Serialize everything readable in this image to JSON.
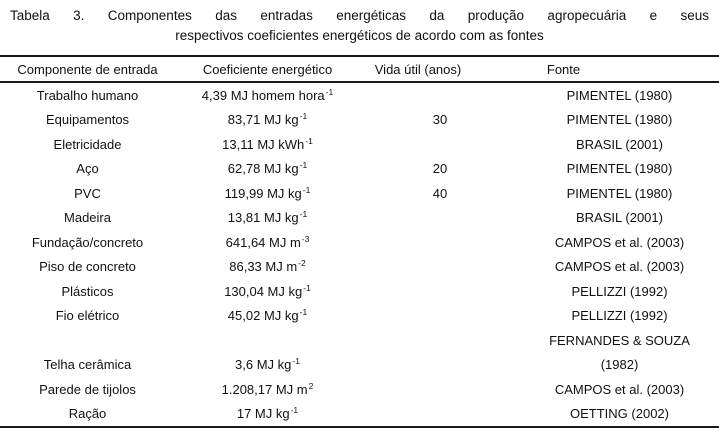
{
  "title_lines": [
    "Tabela 3. Componentes das entradas energéticas da produção agropecuária e seus",
    "respectivos coeficientes energéticos de acordo com as fontes"
  ],
  "table": {
    "headers": {
      "component": "Componente de entrada",
      "coefficient": "Coeficiente energético",
      "lifespan": "Vida útil (anos)",
      "source": "Fonte"
    },
    "rows": [
      {
        "component": "Trabalho humano",
        "coefficient": "4,39 MJ homem hora",
        "coefficient_exponent": "-1",
        "lifespan_years": "",
        "source": "PIMENTEL (1980)"
      },
      {
        "component": "Equipamentos",
        "coefficient": "83,71 MJ kg",
        "coefficient_exponent": "-1",
        "lifespan_years": "30",
        "source": "PIMENTEL (1980)"
      },
      {
        "component": "Eletricidade",
        "coefficient": "13,11 MJ kWh",
        "coefficient_exponent": "-1",
        "lifespan_years": "",
        "source": "BRASIL (2001)"
      },
      {
        "component": "Aço",
        "coefficient": "62,78 MJ kg",
        "coefficient_exponent": "-1",
        "lifespan_years": "20",
        "source": "PIMENTEL (1980)"
      },
      {
        "component": "PVC",
        "coefficient": "119,99 MJ kg",
        "coefficient_exponent": "-1",
        "lifespan_years": "40",
        "source": "PIMENTEL (1980)"
      },
      {
        "component": "Madeira",
        "coefficient": "13,81 MJ kg",
        "coefficient_exponent": "-1",
        "lifespan_years": "",
        "source": "BRASIL (2001)"
      },
      {
        "component": "Fundação/concreto",
        "coefficient": "641,64 MJ m",
        "coefficient_exponent": "-3",
        "lifespan_years": "",
        "source": "CAMPOS et al. (2003)"
      },
      {
        "component": "Piso de concreto",
        "coefficient": "86,33 MJ m",
        "coefficient_exponent": "-2",
        "lifespan_years": "",
        "source": "CAMPOS et al. (2003)"
      },
      {
        "component": "Plásticos",
        "coefficient": "130,04 MJ kg",
        "coefficient_exponent": "-1",
        "lifespan_years": "",
        "source": "PELLIZZI (1992)"
      },
      {
        "component": "Fio elétrico",
        "coefficient": "45,02 MJ kg",
        "coefficient_exponent": "-1",
        "lifespan_years": "",
        "source": "PELLIZZI (1992)"
      },
      {
        "component": "",
        "coefficient": "",
        "coefficient_exponent": "",
        "lifespan_years": "",
        "source": "FERNANDES & SOUZA"
      },
      {
        "component": "Telha cerâmica",
        "coefficient": "3,6 MJ kg",
        "coefficient_exponent": "-1",
        "lifespan_years": "",
        "source": "(1982)"
      },
      {
        "component": "Parede de tijolos",
        "coefficient": "1.208,17 MJ m",
        "coefficient_exponent": "2",
        "lifespan_years": "",
        "source": "CAMPOS et al. (2003)"
      },
      {
        "component": "Ração",
        "coefficient": "17 MJ kg",
        "coefficient_exponent": "-1",
        "lifespan_years": "",
        "source": "OETTING (2002)"
      }
    ]
  }
}
